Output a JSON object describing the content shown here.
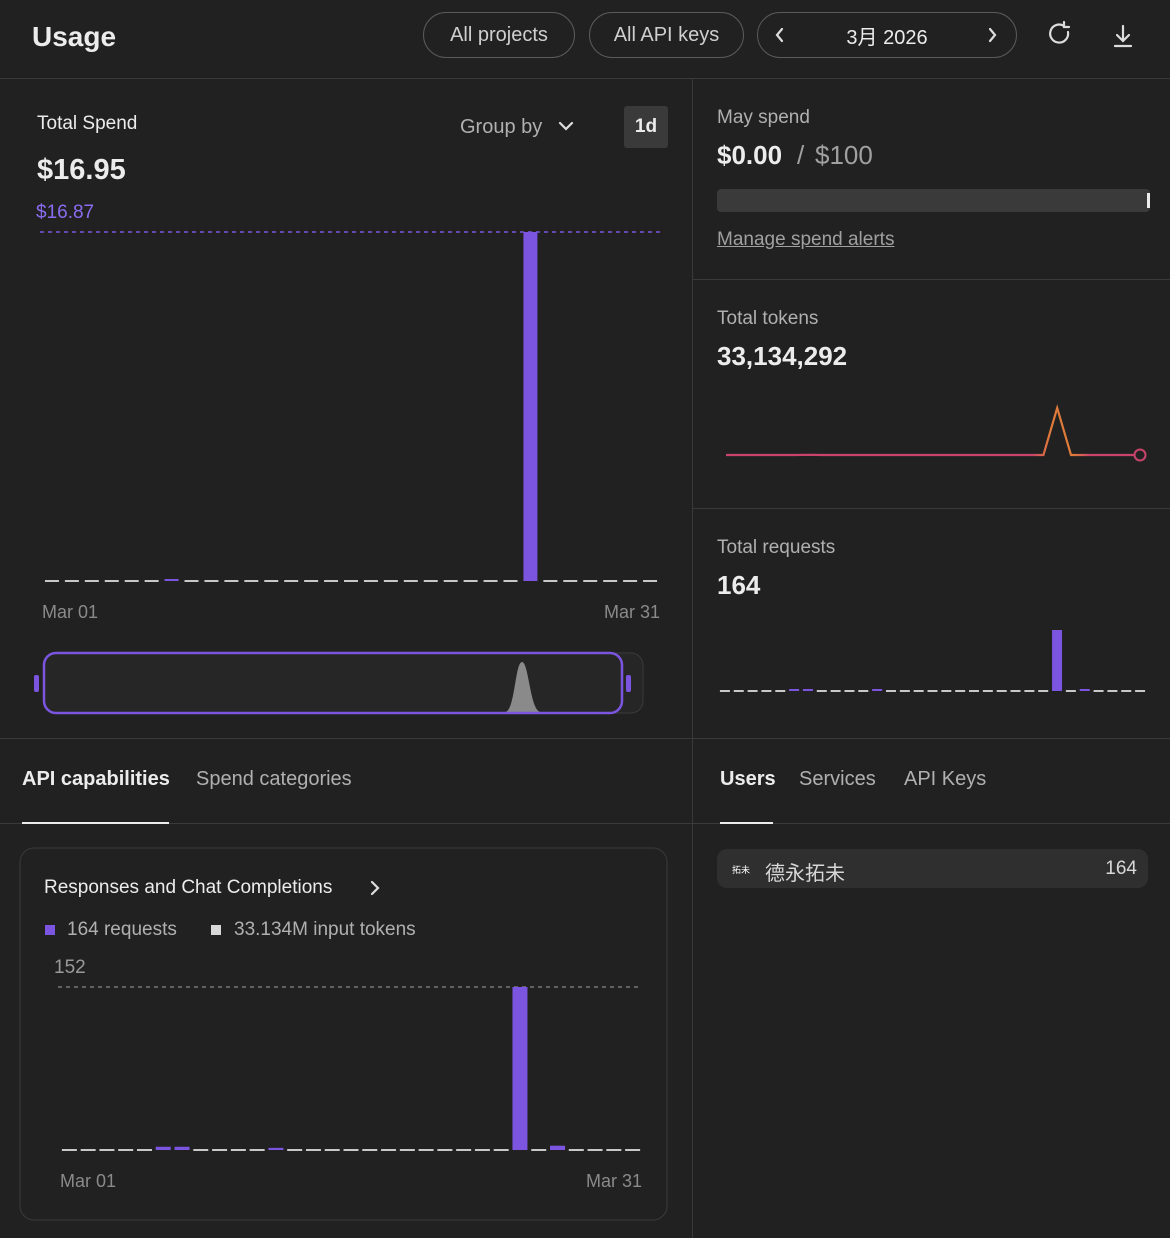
{
  "header": {
    "title": "Usage",
    "filters": [
      "All projects",
      "All API keys"
    ],
    "month": "3月 2026"
  },
  "spend": {
    "label": "Total Spend",
    "amount": "$16.95",
    "group_by": "Group by",
    "interval": "1d",
    "chart_data": {
      "type": "bar",
      "color": "#7b55e0",
      "values": [
        0,
        0,
        0,
        0,
        0,
        0,
        0.08,
        0,
        0,
        0,
        0,
        0,
        0,
        0,
        0,
        0,
        0,
        0,
        0,
        0,
        0,
        0,
        0,
        0,
        16.87,
        0,
        0,
        0,
        0,
        0,
        0
      ],
      "ylim": [
        0,
        16.87
      ],
      "yticks": [
        {
          "value": 16.87,
          "label": "$16.87"
        }
      ],
      "x_labels": [
        "Mar 01",
        "Mar 31"
      ]
    }
  },
  "budget": {
    "label": "May spend",
    "current": "$0.00",
    "separator": "/",
    "limit": "$100",
    "link": "Manage spend alerts"
  },
  "tokens": {
    "label": "Total tokens",
    "total": "33,134,292",
    "chart_data": {
      "type": "line",
      "color": "#c9436b",
      "values": [
        0,
        0,
        0,
        0,
        0,
        0,
        134292,
        0,
        0,
        0,
        0,
        0,
        0,
        0,
        0,
        0,
        0,
        0,
        0,
        0,
        0,
        0,
        0,
        0,
        33000000,
        0,
        0,
        0,
        0,
        0,
        0
      ]
    }
  },
  "requests": {
    "label": "Total requests",
    "total": "164",
    "chart_data": {
      "type": "bar",
      "color": "#7b55e0",
      "values": [
        0,
        0,
        0,
        0,
        0,
        3,
        3,
        0,
        0,
        0,
        0,
        2,
        0,
        0,
        0,
        0,
        0,
        0,
        0,
        0,
        0,
        0,
        0,
        0,
        152,
        0,
        4,
        0,
        0,
        0,
        0
      ]
    }
  },
  "left_tabs": [
    "API capabilities",
    "Spend categories"
  ],
  "card": {
    "title": "Responses and Chat Completions",
    "legend": [
      "164 requests",
      "33.134M input tokens"
    ],
    "chart_data": {
      "type": "bar",
      "color": "#7b55e0",
      "values": [
        0,
        0,
        0,
        0,
        0,
        3,
        3,
        0,
        0,
        0,
        0,
        2,
        0,
        0,
        0,
        0,
        0,
        0,
        0,
        0,
        0,
        0,
        0,
        0,
        152,
        0,
        4,
        0,
        0,
        0,
        0
      ],
      "ylim": [
        0,
        152
      ],
      "yticks": [
        152
      ],
      "x_labels": [
        "Mar 01",
        "Mar 31"
      ]
    }
  },
  "right_tabs": [
    "Users",
    "Services",
    "API Keys"
  ],
  "users": [
    {
      "avatar": "拓未",
      "name": "德永拓未",
      "count": 164
    }
  ]
}
